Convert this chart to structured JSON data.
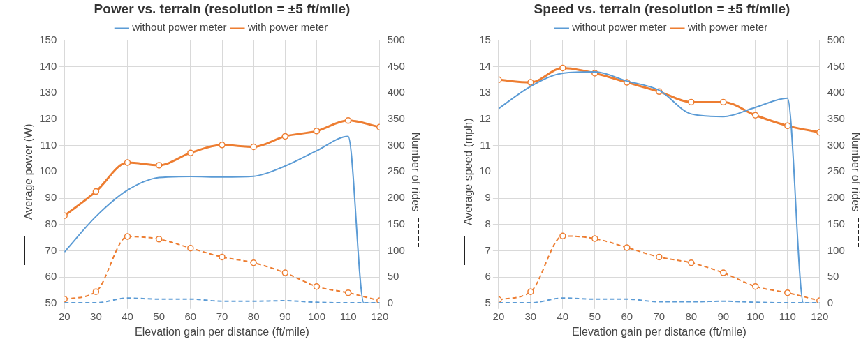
{
  "chart_data": [
    {
      "type": "line",
      "title": "Power vs. terrain (resolution = ±5 ft/mile)",
      "xlabel": "Elevation gain per distance (ft/mile)",
      "ylabel": "Average power (W)",
      "y2label": "Number of rides",
      "x": [
        20,
        30,
        40,
        50,
        60,
        70,
        80,
        90,
        100,
        110,
        120
      ],
      "xlim": [
        20,
        120
      ],
      "xticks": [
        20,
        30,
        40,
        50,
        60,
        70,
        80,
        90,
        100,
        110,
        120
      ],
      "ylim": [
        50,
        150
      ],
      "yticks": [
        50,
        60,
        70,
        80,
        90,
        100,
        110,
        120,
        130,
        140,
        150
      ],
      "y2lim": [
        0,
        500
      ],
      "y2ticks": [
        0,
        50,
        100,
        150,
        200,
        250,
        300,
        350,
        400,
        450,
        500
      ],
      "grid": true,
      "legend": "top",
      "series": [
        {
          "name": "without power meter",
          "color": "#5b9bd5",
          "marker": "none",
          "line_style": "solid",
          "x": [
            20,
            30,
            40,
            50,
            60,
            70,
            80,
            90,
            100,
            110,
            115,
            120
          ],
          "values": [
            69.5,
            83,
            93,
            97.8,
            98.2,
            98,
            98.3,
            102.2,
            108,
            113.5,
            50,
            50
          ]
        },
        {
          "name": "with power meter",
          "color": "#ed7d31",
          "marker": "circle",
          "line_style": "solid",
          "values": [
            83.3,
            92.5,
            103.5,
            102.5,
            107.2,
            110.2,
            109.5,
            113.5,
            115.5,
            119.5,
            117
          ]
        },
        {
          "color": "#5b9bd5",
          "marker": "none",
          "line_style": "dashed",
          "axis": "y2",
          "values": [
            1,
            1,
            10,
            8,
            8,
            4,
            4,
            5,
            2,
            1,
            1
          ]
        },
        {
          "color": "#ed7d31",
          "marker": "circle",
          "line_style": "dashed",
          "axis": "y2",
          "values": [
            8,
            22,
            127,
            122,
            105,
            88,
            77,
            58,
            32,
            20,
            5
          ]
        }
      ]
    },
    {
      "type": "line",
      "title": "Speed vs. terrain (resolution = ±5 ft/mile)",
      "xlabel": "Elevation gain per distance (ft/mile)",
      "ylabel": "Average speed (mph)",
      "y2label": "Number of rides",
      "x": [
        20,
        30,
        40,
        50,
        60,
        70,
        80,
        90,
        100,
        110,
        120
      ],
      "xlim": [
        20,
        120
      ],
      "xticks": [
        20,
        30,
        40,
        50,
        60,
        70,
        80,
        90,
        100,
        110,
        120
      ],
      "ylim": [
        5,
        15
      ],
      "yticks": [
        5,
        6,
        7,
        8,
        9,
        10,
        11,
        12,
        13,
        14,
        15
      ],
      "y2lim": [
        0,
        500
      ],
      "y2ticks": [
        0,
        50,
        100,
        150,
        200,
        250,
        300,
        350,
        400,
        450,
        500
      ],
      "grid": true,
      "legend": "top",
      "series": [
        {
          "name": "without power meter",
          "color": "#5b9bd5",
          "marker": "none",
          "line_style": "solid",
          "x": [
            20,
            30,
            40,
            50,
            60,
            70,
            80,
            90,
            100,
            110,
            115,
            120
          ],
          "values": [
            12.4,
            13.25,
            13.75,
            13.8,
            13.45,
            13.1,
            12.2,
            12.1,
            12.45,
            12.8,
            5,
            5
          ]
        },
        {
          "name": "with power meter",
          "color": "#ed7d31",
          "marker": "circle",
          "line_style": "solid",
          "values": [
            13.5,
            13.4,
            13.95,
            13.75,
            13.4,
            13.05,
            12.65,
            12.65,
            12.15,
            11.75,
            11.5
          ]
        },
        {
          "color": "#5b9bd5",
          "marker": "none",
          "line_style": "dashed",
          "axis": "y2",
          "values": [
            1,
            1,
            10,
            8,
            8,
            3,
            3,
            4,
            2,
            1,
            1
          ]
        },
        {
          "color": "#ed7d31",
          "marker": "circle",
          "line_style": "dashed",
          "axis": "y2",
          "values": [
            7,
            22,
            128,
            123,
            106,
            88,
            77,
            58,
            32,
            20,
            5
          ]
        }
      ]
    }
  ]
}
